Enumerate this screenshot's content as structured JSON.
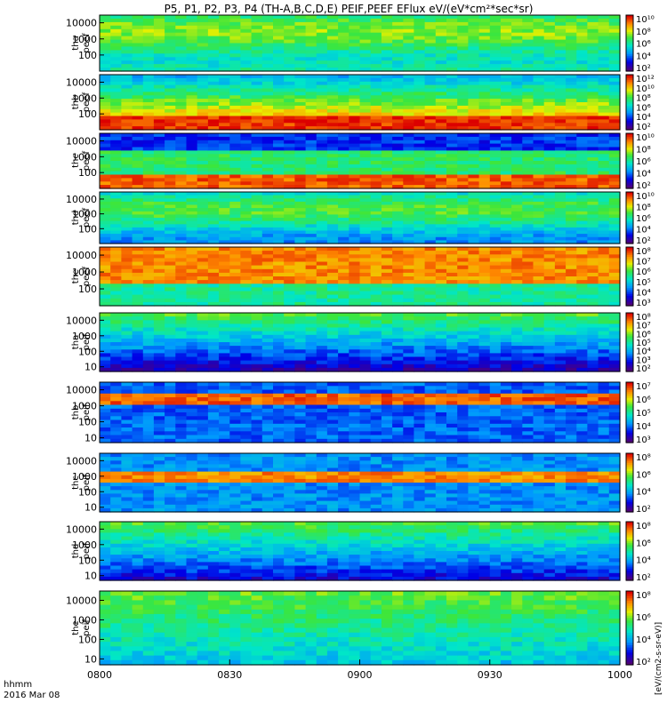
{
  "chart_data": {
    "type": "heatmap",
    "title": "P5, P1, P2, P3, P4 (TH-A,B,C,D,E) PEIF,PEEF EFlux eV/(eV*cm²*sec*sr)",
    "x_axis": {
      "ticks": [
        "0800",
        "0830",
        "0900",
        "0930",
        "1000"
      ],
      "range": [
        "08:00",
        "10:00"
      ],
      "label_line1": "hhmm",
      "label_line2": "2016 Mar 08"
    },
    "colorbar_unit": "[eV/(cm2-s-sr-eV)]",
    "panels": [
      {
        "probe": "tha",
        "species": "peef",
        "y_ticks": [
          "10000",
          "1000",
          "100"
        ],
        "yrange": [
          10,
          30000
        ],
        "cbar_ticks": [
          "10¹⁰",
          "10⁸",
          "10⁶",
          "10⁴",
          "10²"
        ],
        "cbar_range": [
          100,
          10000000000.0
        ]
      },
      {
        "probe": "thb",
        "species": "peef",
        "y_ticks": [
          "10000",
          "1000",
          "100"
        ],
        "yrange": [
          10,
          30000
        ],
        "cbar_ticks": [
          "10¹²",
          "10¹⁰",
          "10⁸",
          "10⁶",
          "10⁴",
          "10²"
        ],
        "cbar_range": [
          100,
          1000000000000.0
        ]
      },
      {
        "probe": "thc",
        "species": "peef",
        "y_ticks": [
          "10000",
          "1000",
          "100"
        ],
        "yrange": [
          10,
          30000
        ],
        "cbar_ticks": [
          "10¹⁰",
          "10⁸",
          "10⁶",
          "10⁴",
          "10²"
        ],
        "cbar_range": [
          100,
          10000000000.0
        ]
      },
      {
        "probe": "thd",
        "species": "peef",
        "y_ticks": [
          "10000",
          "1000",
          "100"
        ],
        "yrange": [
          10,
          30000
        ],
        "cbar_ticks": [
          "10¹⁰",
          "10⁸",
          "10⁶",
          "10⁴",
          "10²"
        ],
        "cbar_range": [
          100,
          10000000000.0
        ]
      },
      {
        "probe": "the",
        "species": "peef",
        "y_ticks": [
          "10000",
          "1000",
          "100"
        ],
        "yrange": [
          10,
          30000
        ],
        "cbar_ticks": [
          "10⁸",
          "10⁷",
          "10⁶",
          "10⁵",
          "10⁴",
          "10³"
        ],
        "cbar_range": [
          1000,
          100000000.0
        ]
      },
      {
        "probe": "tha",
        "species": "peif",
        "y_ticks": [
          "10000",
          "1000",
          "100",
          "10"
        ],
        "yrange": [
          5,
          30000
        ],
        "cbar_ticks": [
          "10⁸",
          "10⁷",
          "10⁶",
          "10⁵",
          "10⁴",
          "10³",
          "10²"
        ],
        "cbar_range": [
          100,
          100000000.0
        ]
      },
      {
        "probe": "thb",
        "species": "peif",
        "y_ticks": [
          "10000",
          "1000",
          "100",
          "10"
        ],
        "yrange": [
          5,
          30000
        ],
        "cbar_ticks": [
          "10⁷",
          "10⁶",
          "10⁵",
          "10⁴",
          "10³"
        ],
        "cbar_range": [
          1000,
          10000000.0
        ]
      },
      {
        "probe": "thc",
        "species": "peif",
        "y_ticks": [
          "10000",
          "1000",
          "100",
          "10"
        ],
        "yrange": [
          5,
          30000
        ],
        "cbar_ticks": [
          "10⁸",
          "10⁶",
          "10⁴",
          "10²"
        ],
        "cbar_range": [
          100,
          100000000.0
        ]
      },
      {
        "probe": "thd",
        "species": "peif",
        "y_ticks": [
          "10000",
          "1000",
          "100",
          "10"
        ],
        "yrange": [
          5,
          30000
        ],
        "cbar_ticks": [
          "10⁸",
          "10⁶",
          "10⁴",
          "10²"
        ],
        "cbar_range": [
          100,
          100000000.0
        ]
      },
      {
        "probe": "the",
        "species": "peif",
        "y_ticks": [
          "10000",
          "1000",
          "100",
          "10"
        ],
        "yrange": [
          5,
          30000
        ],
        "cbar_ticks": [
          "10⁸",
          "10⁶",
          "10⁴",
          "10²"
        ],
        "cbar_range": [
          100,
          100000000.0
        ]
      }
    ]
  }
}
